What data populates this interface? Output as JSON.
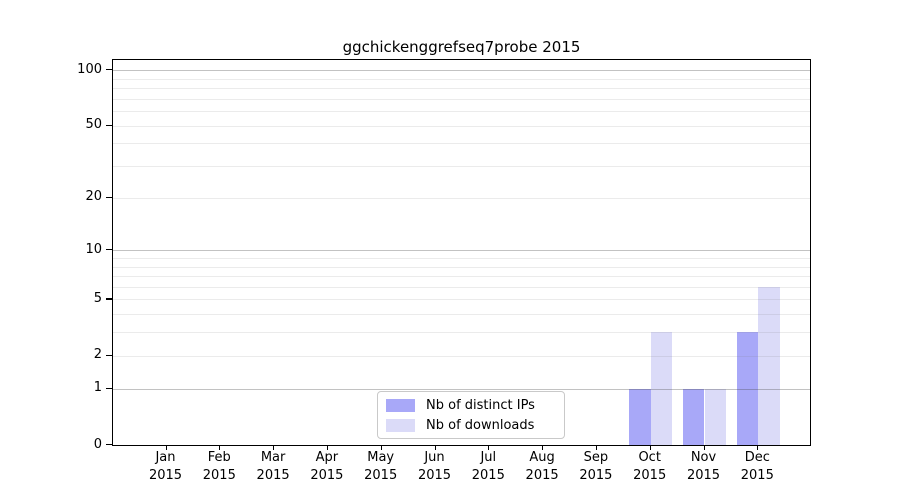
{
  "chart_data": {
    "type": "bar",
    "title": "ggchickenggrefseq7probe 2015",
    "categories": [
      "Jan",
      "Feb",
      "Mar",
      "Apr",
      "May",
      "Jun",
      "Jul",
      "Aug",
      "Sep",
      "Oct",
      "Nov",
      "Dec"
    ],
    "year": "2015",
    "series": [
      {
        "name": "Nb of distinct IPs",
        "color": "#a8a8f8",
        "values": [
          0,
          0,
          0,
          0,
          0,
          0,
          0,
          0,
          0,
          1,
          1,
          3
        ]
      },
      {
        "name": "Nb of downloads",
        "color": "#dbdbf8",
        "values": [
          0,
          0,
          0,
          0,
          0,
          0,
          0,
          0,
          0,
          3,
          1,
          6
        ]
      }
    ],
    "y_scale": "log10(1+v)",
    "y_ticks": [
      0,
      1,
      2,
      5,
      10,
      20,
      50,
      100
    ],
    "major_gridlines": [
      1,
      10,
      100
    ],
    "minor_gridlines": [
      2,
      3,
      4,
      5,
      6,
      7,
      8,
      9,
      20,
      30,
      40,
      50,
      60,
      70,
      80,
      90
    ],
    "ylim": [
      0,
      112
    ],
    "grid": "horizontal",
    "legend_position": "bottom-center"
  },
  "colors": {
    "major_grid": "rgba(70,70,70,0.33)",
    "minor_grid": "rgba(120,120,120,0.15)",
    "spine": "#000000",
    "background": "#ffffff"
  }
}
